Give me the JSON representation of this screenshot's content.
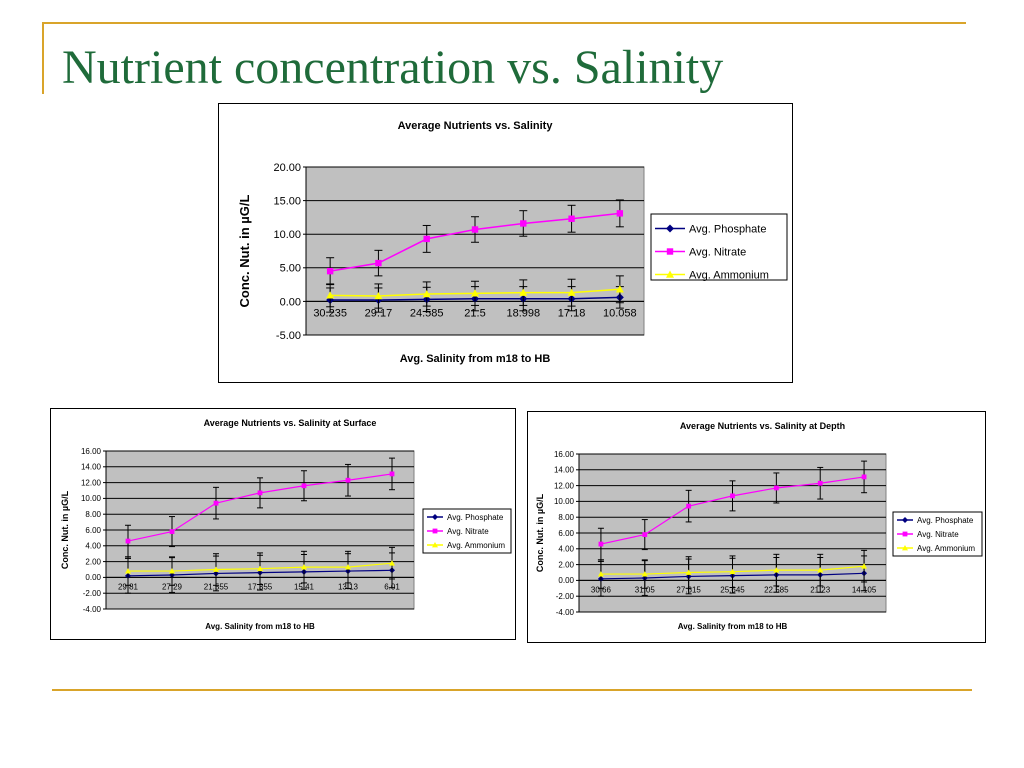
{
  "slide": {
    "title": "Nutrient concentration vs. Salinity",
    "accent_color": "#d9a42a",
    "title_color": "#1f6b3a"
  },
  "chart_data": [
    {
      "type": "line",
      "title": "Average Nutrients vs. Salinity",
      "xlabel": "Avg. Salinity from m18 to HB",
      "ylabel": "Conc. Nut. in µG/L",
      "categories": [
        "30.235",
        "29.17",
        "24.585",
        "21.5",
        "18.998",
        "17.18",
        "10.058"
      ],
      "ylim": [
        -5,
        20
      ],
      "yticks": [
        "-5.00",
        "0.00",
        "5.00",
        "10.00",
        "15.00",
        "20.00"
      ],
      "grid": true,
      "plot_background": "#c0c0c0",
      "legend_position": "right",
      "series": [
        {
          "name": "Avg. Phosphate",
          "color": "#000080",
          "marker": "diamond",
          "values": [
            0.2,
            0.2,
            0.3,
            0.4,
            0.4,
            0.4,
            0.6
          ],
          "error": [
            1.8,
            1.8,
            1.8,
            1.8,
            1.8,
            1.8,
            1.6
          ]
        },
        {
          "name": "Avg. Nitrate",
          "color": "#ff00ff",
          "marker": "square",
          "values": [
            4.5,
            5.7,
            9.3,
            10.7,
            11.6,
            12.3,
            13.1
          ],
          "error": [
            2.0,
            1.9,
            2.0,
            1.9,
            1.9,
            2.0,
            2.0
          ]
        },
        {
          "name": "Avg. Ammonium",
          "color": "#ffff00",
          "marker": "triangle",
          "values": [
            0.9,
            0.8,
            1.1,
            1.2,
            1.3,
            1.3,
            1.8
          ],
          "error": [
            1.7,
            1.8,
            1.8,
            1.8,
            1.9,
            2.0,
            2.0
          ]
        }
      ]
    },
    {
      "type": "line",
      "title": "Average Nutrients vs. Salinity at Surface",
      "xlabel": "Avg. Salinity from m18 to HB",
      "ylabel": "Conc. Nut. in µG/L",
      "categories": [
        "29.81",
        "27.29",
        "21.555",
        "17.355",
        "15.41",
        "13.13",
        "6.01"
      ],
      "ylim": [
        -4,
        16
      ],
      "yticks": [
        "-4.00",
        "-2.00",
        "0.00",
        "2.00",
        "4.00",
        "6.00",
        "8.00",
        "10.00",
        "12.00",
        "14.00",
        "16.00"
      ],
      "grid": true,
      "plot_background": "#c0c0c0",
      "legend_position": "right",
      "series": [
        {
          "name": "Avg. Phosphate",
          "color": "#000080",
          "marker": "diamond",
          "values": [
            0.2,
            0.3,
            0.5,
            0.6,
            0.7,
            0.8,
            0.9
          ],
          "error": [
            2.2,
            2.2,
            2.2,
            2.2,
            2.2,
            2.2,
            2.2
          ]
        },
        {
          "name": "Avg. Nitrate",
          "color": "#ff00ff",
          "marker": "square",
          "values": [
            4.6,
            5.8,
            9.4,
            10.7,
            11.6,
            12.3,
            13.1
          ],
          "error": [
            2.0,
            1.9,
            2.0,
            1.9,
            1.9,
            2.0,
            2.0
          ]
        },
        {
          "name": "Avg. Ammonium",
          "color": "#ffff00",
          "marker": "triangle",
          "values": [
            0.8,
            0.8,
            1.0,
            1.1,
            1.3,
            1.3,
            1.8
          ],
          "error": [
            1.8,
            1.8,
            2.0,
            2.0,
            2.0,
            2.0,
            2.0
          ]
        }
      ]
    },
    {
      "type": "line",
      "title": "Average Nutrients vs. Salinity at Depth",
      "xlabel": "Avg. Salinity from m18 to HB",
      "ylabel": "Conc. Nut. in µG/L",
      "categories": [
        "30.66",
        "31.05",
        "27.615",
        "25.645",
        "22.585",
        "21.23",
        "14.105"
      ],
      "ylim": [
        -4,
        16
      ],
      "yticks": [
        "-4.00",
        "-2.00",
        "0.00",
        "2.00",
        "4.00",
        "6.00",
        "8.00",
        "10.00",
        "12.00",
        "14.00",
        "16.00"
      ],
      "grid": true,
      "plot_background": "#c0c0c0",
      "legend_position": "right",
      "series": [
        {
          "name": "Avg. Phosphate",
          "color": "#000080",
          "marker": "diamond",
          "values": [
            0.2,
            0.3,
            0.5,
            0.6,
            0.7,
            0.7,
            0.9
          ],
          "error": [
            2.2,
            2.2,
            2.2,
            2.2,
            2.2,
            2.2,
            2.2
          ]
        },
        {
          "name": "Avg. Nitrate",
          "color": "#ff00ff",
          "marker": "square",
          "values": [
            4.6,
            5.8,
            9.4,
            10.7,
            11.7,
            12.3,
            13.1
          ],
          "error": [
            2.0,
            1.9,
            2.0,
            1.9,
            1.9,
            2.0,
            2.0
          ]
        },
        {
          "name": "Avg. Ammonium",
          "color": "#ffff00",
          "marker": "triangle",
          "values": [
            0.8,
            0.8,
            1.0,
            1.1,
            1.3,
            1.3,
            1.8
          ],
          "error": [
            1.8,
            1.8,
            2.0,
            2.0,
            2.0,
            2.0,
            2.0
          ]
        }
      ]
    }
  ]
}
